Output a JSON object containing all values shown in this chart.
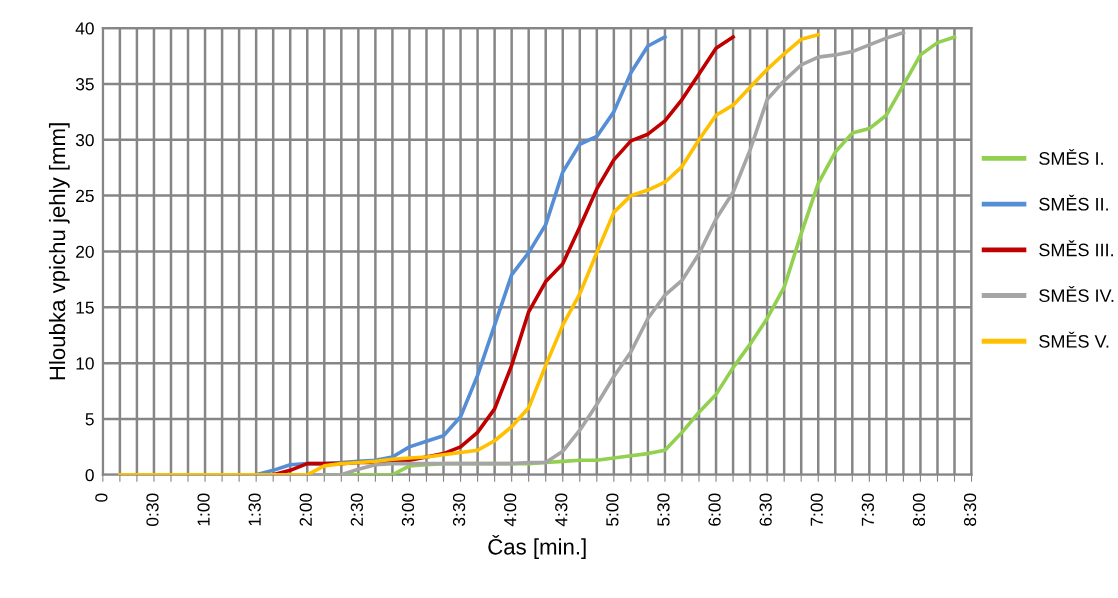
{
  "chart_data": {
    "type": "line",
    "xlabel": "Čas [min.]",
    "ylabel": "Hloubka vpichu jehly [mm]",
    "x": [
      0.1667,
      0.3333,
      0.5,
      0.6667,
      0.8333,
      1.0,
      1.1667,
      1.3333,
      1.5,
      1.6667,
      1.8333,
      2.0,
      2.1667,
      2.3333,
      2.5,
      2.6667,
      2.8333,
      3.0,
      3.1667,
      3.3333,
      3.5,
      3.6667,
      3.8333,
      4.0,
      4.1667,
      4.3333,
      4.5,
      4.6667,
      4.8333,
      5.0,
      5.1667,
      5.3333,
      5.5,
      5.6667,
      5.8333,
      6.0,
      6.1667,
      6.3333,
      6.5,
      6.6667,
      6.8333,
      7.0,
      7.1667,
      7.3333,
      7.5,
      7.6667,
      7.8333,
      8.0,
      8.1667,
      8.3333
    ],
    "series": [
      {
        "name": "SMĚS I.",
        "color": "#92d050",
        "values": [
          null,
          null,
          null,
          null,
          null,
          null,
          null,
          null,
          null,
          null,
          null,
          null,
          0,
          0,
          0,
          0,
          0,
          0.8,
          0.9,
          1.0,
          1.0,
          1.0,
          1.0,
          1.0,
          1.0,
          1.1,
          1.2,
          1.3,
          1.3,
          1.5,
          1.7,
          1.9,
          2.2,
          3.8,
          5.6,
          7.2,
          9.6,
          11.7,
          14.0,
          16.8,
          21.6,
          26.1,
          28.9,
          30.6,
          31.0,
          32.2,
          34.9,
          37.6,
          38.7,
          39.2
        ]
      },
      {
        "name": "SMĚS II.",
        "color": "#558ed5",
        "values": [
          null,
          null,
          null,
          null,
          null,
          null,
          null,
          0,
          0,
          0.4,
          0.9,
          1.0,
          1.0,
          1.1,
          1.2,
          1.3,
          1.6,
          2.5,
          3.0,
          3.5,
          5.2,
          8.9,
          13.4,
          17.9,
          19.9,
          22.4,
          27.1,
          29.6,
          30.3,
          32.5,
          36.0,
          38.4,
          39.2,
          null,
          null,
          null,
          null,
          null,
          null,
          null,
          null,
          null,
          null,
          null,
          null,
          null,
          null,
          null,
          null,
          null
        ]
      },
      {
        "name": "SMĚS III.",
        "color": "#c00000",
        "values": [
          null,
          null,
          null,
          null,
          null,
          null,
          null,
          0,
          0,
          0,
          0.4,
          1.0,
          1.0,
          1.0,
          1.1,
          1.1,
          1.2,
          1.3,
          1.6,
          1.9,
          2.5,
          3.8,
          5.9,
          9.8,
          14.6,
          17.3,
          18.9,
          22.2,
          25.6,
          28.2,
          29.9,
          30.5,
          31.7,
          33.6,
          35.9,
          38.2,
          39.2,
          null,
          null,
          null,
          null,
          null,
          null,
          null,
          null,
          null,
          null,
          null,
          null,
          null
        ]
      },
      {
        "name": "SMĚS IV.",
        "color": "#a5a5a5",
        "values": [
          0,
          0,
          0,
          0,
          0,
          0,
          0,
          0,
          0,
          0,
          0,
          0,
          0,
          0,
          0.5,
          0.9,
          1.0,
          1.0,
          1.0,
          1.0,
          1.0,
          1.0,
          1.0,
          1.0,
          1.1,
          1.1,
          2.1,
          4.0,
          6.3,
          8.8,
          11.0,
          14.0,
          16.1,
          17.4,
          19.8,
          22.9,
          25.3,
          29.1,
          33.6,
          35.3,
          36.7,
          37.4,
          37.6,
          37.9,
          38.5,
          39.1,
          39.6,
          null,
          null,
          null
        ]
      },
      {
        "name": "SMĚS V.",
        "color": "#ffc000",
        "values": [
          0,
          0,
          0,
          0,
          0,
          0,
          0,
          0,
          0,
          0,
          0,
          0,
          0.8,
          1.0,
          1.1,
          1.2,
          1.4,
          1.5,
          1.6,
          1.8,
          2.0,
          2.2,
          3.05,
          4.3,
          6.0,
          9.8,
          13.4,
          16.2,
          19.9,
          23.5,
          25.0,
          25.5,
          26.2,
          27.6,
          30.0,
          32.2,
          33.1,
          34.7,
          36.3,
          37.7,
          39.0,
          39.4,
          null,
          null,
          null,
          null,
          null,
          null,
          null,
          null
        ]
      }
    ],
    "xlim": [
      0,
      8.5
    ],
    "xticks": [
      {
        "value": 0,
        "label": "0"
      },
      {
        "value": 0.1667,
        "label": null
      },
      {
        "value": 0.3333,
        "label": null
      },
      {
        "value": 0.5,
        "label": "0:30"
      },
      {
        "value": 0.6667,
        "label": null
      },
      {
        "value": 0.8333,
        "label": null
      },
      {
        "value": 1.0,
        "label": "1:00"
      },
      {
        "value": 1.1667,
        "label": null
      },
      {
        "value": 1.3333,
        "label": null
      },
      {
        "value": 1.5,
        "label": "1:30"
      },
      {
        "value": 1.6667,
        "label": null
      },
      {
        "value": 1.8333,
        "label": null
      },
      {
        "value": 2.0,
        "label": "2:00"
      },
      {
        "value": 2.1667,
        "label": null
      },
      {
        "value": 2.3333,
        "label": null
      },
      {
        "value": 2.5,
        "label": "2:30"
      },
      {
        "value": 2.6667,
        "label": null
      },
      {
        "value": 2.8333,
        "label": null
      },
      {
        "value": 3.0,
        "label": "3:00"
      },
      {
        "value": 3.1667,
        "label": null
      },
      {
        "value": 3.3333,
        "label": null
      },
      {
        "value": 3.5,
        "label": "3:30"
      },
      {
        "value": 3.6667,
        "label": null
      },
      {
        "value": 3.8333,
        "label": null
      },
      {
        "value": 4.0,
        "label": "4:00"
      },
      {
        "value": 4.1667,
        "label": null
      },
      {
        "value": 4.3333,
        "label": null
      },
      {
        "value": 4.5,
        "label": "4:30"
      },
      {
        "value": 4.6667,
        "label": null
      },
      {
        "value": 4.8333,
        "label": null
      },
      {
        "value": 5.0,
        "label": "5:00"
      },
      {
        "value": 5.1667,
        "label": null
      },
      {
        "value": 5.3333,
        "label": null
      },
      {
        "value": 5.5,
        "label": "5:30"
      },
      {
        "value": 5.6667,
        "label": null
      },
      {
        "value": 5.8333,
        "label": null
      },
      {
        "value": 6.0,
        "label": "6:00"
      },
      {
        "value": 6.1667,
        "label": null
      },
      {
        "value": 6.3333,
        "label": null
      },
      {
        "value": 6.5,
        "label": "6:30"
      },
      {
        "value": 6.6667,
        "label": null
      },
      {
        "value": 6.8333,
        "label": null
      },
      {
        "value": 7.0,
        "label": "7:00"
      },
      {
        "value": 7.1667,
        "label": null
      },
      {
        "value": 7.3333,
        "label": null
      },
      {
        "value": 7.5,
        "label": "7:30"
      },
      {
        "value": 7.6667,
        "label": null
      },
      {
        "value": 7.8333,
        "label": null
      },
      {
        "value": 8.0,
        "label": "8:00"
      },
      {
        "value": 8.1667,
        "label": null
      },
      {
        "value": 8.3333,
        "label": null
      },
      {
        "value": 8.5,
        "label": "8:30"
      }
    ],
    "ylim": [
      0,
      40
    ],
    "yticks": [
      0,
      5,
      10,
      15,
      20,
      25,
      30,
      35,
      40
    ],
    "grid": true,
    "legend": "right",
    "marker": "none",
    "line_style": "solid"
  }
}
